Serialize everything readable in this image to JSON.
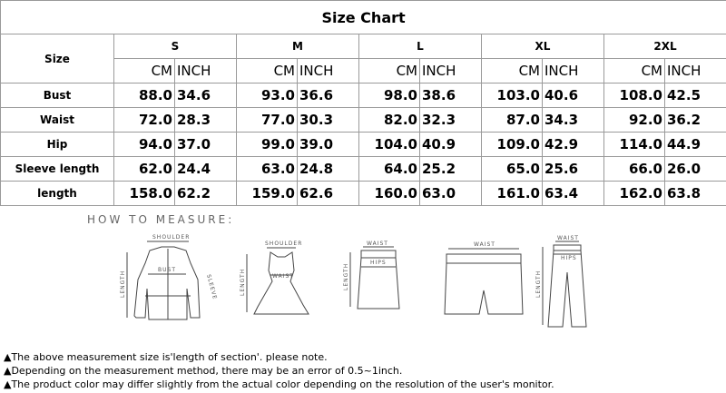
{
  "title": "Size Chart",
  "header": {
    "size_label": "Size",
    "sizes": [
      "S",
      "M",
      "L",
      "XL",
      "2XL"
    ],
    "units": [
      "CM",
      "INCH"
    ]
  },
  "rows": [
    {
      "label": "Bust",
      "values": [
        "88.0",
        "34.6",
        "93.0",
        "36.6",
        "98.0",
        "38.6",
        "103.0",
        "40.6",
        "108.0",
        "42.5"
      ]
    },
    {
      "label": "Waist",
      "values": [
        "72.0",
        "28.3",
        "77.0",
        "30.3",
        "82.0",
        "32.3",
        "87.0",
        "34.3",
        "92.0",
        "36.2"
      ]
    },
    {
      "label": "Hip",
      "values": [
        "94.0",
        "37.0",
        "99.0",
        "39.0",
        "104.0",
        "40.9",
        "109.0",
        "42.9",
        "114.0",
        "44.9"
      ]
    },
    {
      "label": "Sleeve length",
      "values": [
        "62.0",
        "24.4",
        "63.0",
        "24.8",
        "64.0",
        "25.2",
        "65.0",
        "25.6",
        "66.0",
        "26.0"
      ]
    },
    {
      "label": "length",
      "values": [
        "158.0",
        "62.2",
        "159.0",
        "62.6",
        "160.0",
        "63.0",
        "161.0",
        "63.4",
        "162.0",
        "63.8"
      ]
    }
  ],
  "measure": {
    "heading": "HOW TO MEASURE:",
    "shoulder": "SHOULDER",
    "bust": "BUST",
    "length": "LENGTH",
    "sleeve": "SLEEVE",
    "waist": "WAIST",
    "hips": "HIPS"
  },
  "notes": [
    "▲The above measurement size is'length of section'. please note.",
    "▲Depending on the measurement method, there may be an error of 0.5~1inch.",
    "▲The product color may differ slightly from the actual color depending on the resolution of the user's monitor."
  ]
}
